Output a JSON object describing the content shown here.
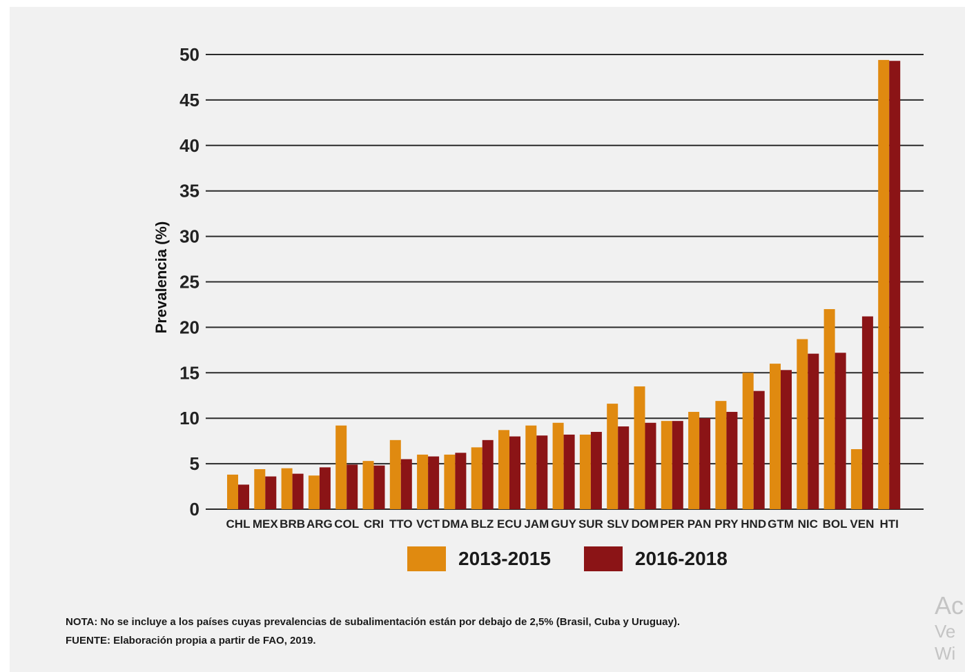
{
  "chart_data": {
    "type": "bar",
    "categories": [
      "CHL",
      "MEX",
      "BRB",
      "ARG",
      "COL",
      "CRI",
      "TTO",
      "VCT",
      "DMA",
      "BLZ",
      "ECU",
      "JAM",
      "GUY",
      "SUR",
      "SLV",
      "DOM",
      "PER",
      "PAN",
      "PRY",
      "HND",
      "GTM",
      "NIC",
      "BOL",
      "VEN",
      "HTI"
    ],
    "series": [
      {
        "name": "2013-2015",
        "color": "#e08a10",
        "values": [
          3.8,
          4.4,
          4.5,
          3.7,
          9.2,
          5.3,
          7.6,
          6.0,
          6.0,
          6.8,
          8.7,
          9.2,
          9.5,
          8.2,
          11.6,
          13.5,
          9.7,
          10.7,
          11.9,
          15.0,
          16.0,
          18.7,
          22.0,
          6.6,
          49.4
        ]
      },
      {
        "name": "2016-2018",
        "color": "#8b1416",
        "values": [
          2.7,
          3.6,
          3.9,
          4.6,
          4.9,
          4.8,
          5.5,
          5.8,
          6.2,
          7.6,
          8.0,
          8.1,
          8.2,
          8.5,
          9.1,
          9.5,
          9.7,
          10.0,
          10.7,
          13.0,
          15.3,
          17.1,
          17.2,
          21.2,
          49.3
        ]
      }
    ],
    "ylabel": "Prevalencia (%)",
    "xlabel": "",
    "ylim": [
      0,
      50
    ],
    "yticks": [
      0,
      5,
      10,
      15,
      20,
      25,
      30,
      35,
      40,
      45,
      50
    ],
    "grid": true,
    "legend_position": "bottom"
  },
  "notes": {
    "nota": "NOTA: No se incluye a los países cuyas prevalencias de subalimentación están por debajo de 2,5% (Brasil, Cuba y Uruguay).",
    "fuente": "FUENTE: Elaboración propia a partir de FAO, 2019."
  },
  "watermark": {
    "line1": "Ac",
    "line2": "Ve",
    "line3": "Wi"
  }
}
